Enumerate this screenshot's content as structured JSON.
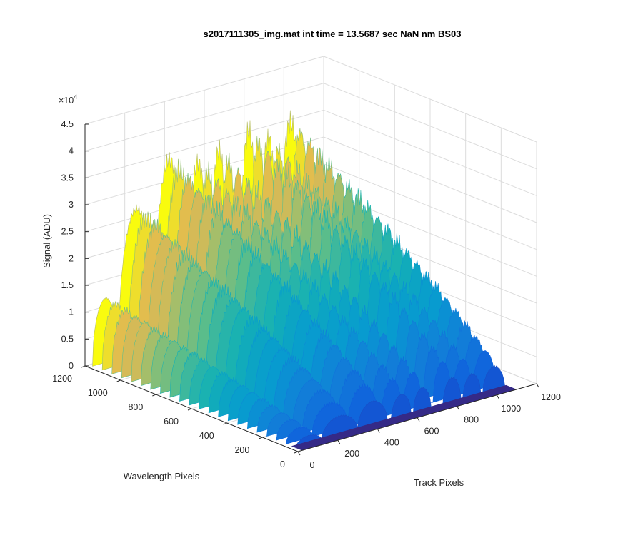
{
  "title": "s2017111305_img.mat int time = 13.5687 sec  NaN nm BS03",
  "chart_data": {
    "type": "surface",
    "title": "s2017111305_img.mat int time = 13.5687 sec  NaN nm BS03",
    "xlabel": "Track Pixels",
    "ylabel": "Wavelength Pixels",
    "zlabel": "Signal (ADU)",
    "x_range": [
      0,
      1200
    ],
    "y_range": [
      0,
      1200
    ],
    "z_range": [
      0,
      45000
    ],
    "x_ticks": [
      "0",
      "200",
      "400",
      "600",
      "800",
      "1000",
      "1200"
    ],
    "y_ticks": [
      "0",
      "200",
      "400",
      "600",
      "800",
      "1000",
      "1200"
    ],
    "z_ticks": [
      "0",
      "0.5",
      "1",
      "1.5",
      "2",
      "2.5",
      "3",
      "3.5",
      "4",
      "4.5"
    ],
    "z_exponent": "×10",
    "z_exponent_power": "4",
    "grid": true,
    "colormap": "parula",
    "tracks": [
      {
        "x_start": 20,
        "x_end": 150,
        "peak": 12000
      },
      {
        "x_start": 150,
        "x_end": 330,
        "peak": 27000
      },
      {
        "x_start": 330,
        "x_end": 480,
        "peak": 34500
      },
      {
        "x_start": 500,
        "x_end": 600,
        "peak": 32500
      },
      {
        "x_start": 610,
        "x_end": 700,
        "peak": 33500
      },
      {
        "x_start": 760,
        "x_end": 850,
        "peak": 35500
      },
      {
        "x_start": 860,
        "x_end": 950,
        "peak": 33000
      },
      {
        "x_start": 960,
        "x_end": 1070,
        "peak": 35000
      }
    ]
  }
}
